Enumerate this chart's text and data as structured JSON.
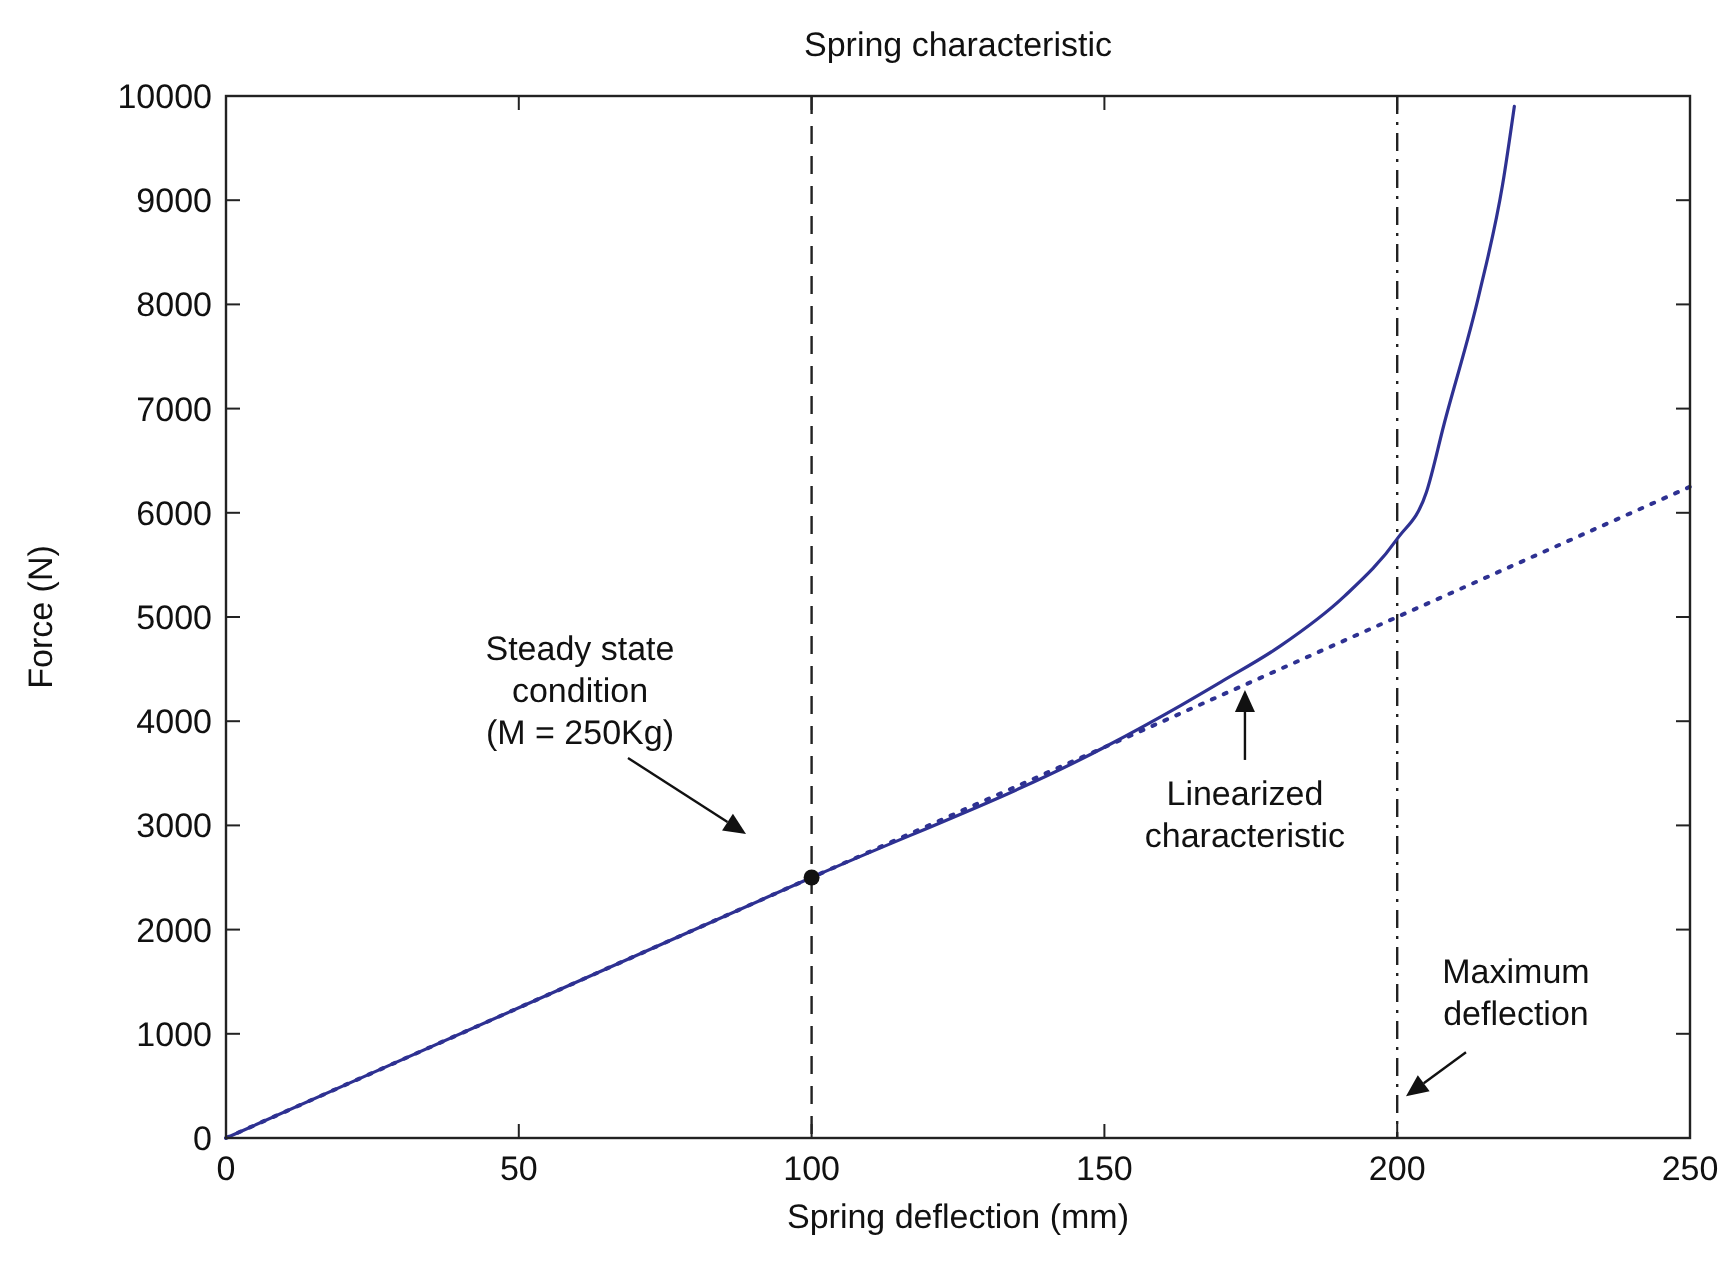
{
  "chart_data": {
    "type": "line",
    "title": "Spring characteristic",
    "xlabel": "Spring deflection (mm)",
    "ylabel": "Force (N)",
    "xlim": [
      0,
      250
    ],
    "xticks": [
      0,
      50,
      100,
      150,
      200,
      250
    ],
    "ylim": [
      0,
      10000
    ],
    "yticks": [
      0,
      1000,
      2000,
      3000,
      4000,
      5000,
      6000,
      7000,
      8000,
      9000,
      10000
    ],
    "grid": false,
    "series": [
      {
        "color": "#2e3192",
        "line_style": "solid",
        "marker": "none",
        "x": [
          0,
          50,
          100,
          150,
          163,
          170,
          180,
          191,
          200,
          205,
          208,
          214,
          218,
          220
        ],
        "values": [
          0,
          1250,
          2500,
          3750,
          4150,
          4380,
          4720,
          5200,
          5750,
          6200,
          6850,
          8100,
          9150,
          9900
        ]
      },
      {
        "color": "#2e3192",
        "line_style": "dotted",
        "marker": "none",
        "x": [
          0,
          250
        ],
        "values": [
          0,
          6250
        ]
      },
      {
        "type": "scatter",
        "color": "#111111",
        "marker": "circle",
        "x": [
          100
        ],
        "values": [
          2500
        ]
      }
    ],
    "ref_lines": [
      {
        "axis": "x",
        "value": 100,
        "color": "#222222",
        "line_style": "dashed"
      },
      {
        "axis": "x",
        "value": 200,
        "color": "#222222",
        "line_style": "dashdot"
      }
    ],
    "annotations": [
      "Steady state\ncondition\n(M = 250Kg)",
      {
        "text": "Linearized\ncharacteristic",
        "x": 174,
        "y": 4300
      },
      {
        "text": "Maximum\ndeflection",
        "x": 201.5,
        "y": 400
      }
    ]
  }
}
